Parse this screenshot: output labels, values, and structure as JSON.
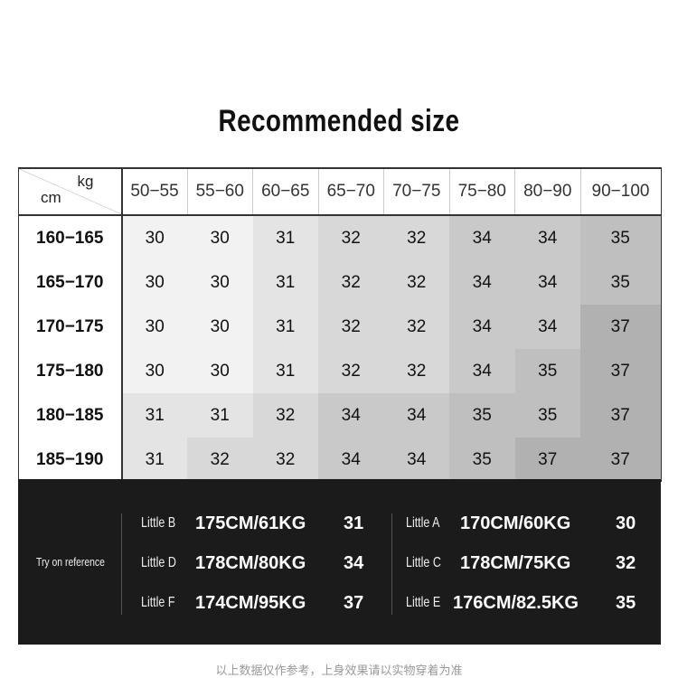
{
  "title": "Recommended size",
  "corner": {
    "weight_unit": "kg",
    "height_unit": "cm"
  },
  "columns": [
    "50−55",
    "55−60",
    "60−65",
    "65−70",
    "70−75",
    "75−80",
    "80−90",
    "90−100"
  ],
  "rows": [
    {
      "label": "160−165",
      "values": [
        "30",
        "30",
        "31",
        "32",
        "32",
        "34",
        "34",
        "35"
      ]
    },
    {
      "label": "165−170",
      "values": [
        "30",
        "30",
        "31",
        "32",
        "32",
        "34",
        "34",
        "35"
      ]
    },
    {
      "label": "170−175",
      "values": [
        "30",
        "30",
        "31",
        "32",
        "32",
        "34",
        "34",
        "37"
      ]
    },
    {
      "label": "175−180",
      "values": [
        "30",
        "30",
        "31",
        "32",
        "32",
        "34",
        "35",
        "37"
      ]
    },
    {
      "label": "180−185",
      "values": [
        "31",
        "31",
        "32",
        "34",
        "34",
        "35",
        "35",
        "37"
      ]
    },
    {
      "label": "185−190",
      "values": [
        "31",
        "32",
        "32",
        "34",
        "34",
        "35",
        "37",
        "37"
      ]
    }
  ],
  "shade_colors": {
    "30": "#f2f2f2",
    "31": "#e4e4e4",
    "32": "#d8d8d8",
    "34": "#c9c9c9",
    "35": "#bfbfbf",
    "37": "#b1b1b1"
  },
  "reference": {
    "label": "Try on reference",
    "left": [
      {
        "name": "Little B",
        "hw": "175CM/61KG",
        "size": "31"
      },
      {
        "name": "Little D",
        "hw": "178CM/80KG",
        "size": "34"
      },
      {
        "name": "Little F",
        "hw": "174CM/95KG",
        "size": "37"
      }
    ],
    "right": [
      {
        "name": "Little A",
        "hw": "170CM/60KG",
        "size": "30"
      },
      {
        "name": "Little C",
        "hw": "178CM/75KG",
        "size": "32"
      },
      {
        "name": "Little E",
        "hw": "176CM/82.5KG",
        "size": "35"
      }
    ]
  },
  "note": "以上数据仅作参考，上身效果请以实物穿着为准"
}
